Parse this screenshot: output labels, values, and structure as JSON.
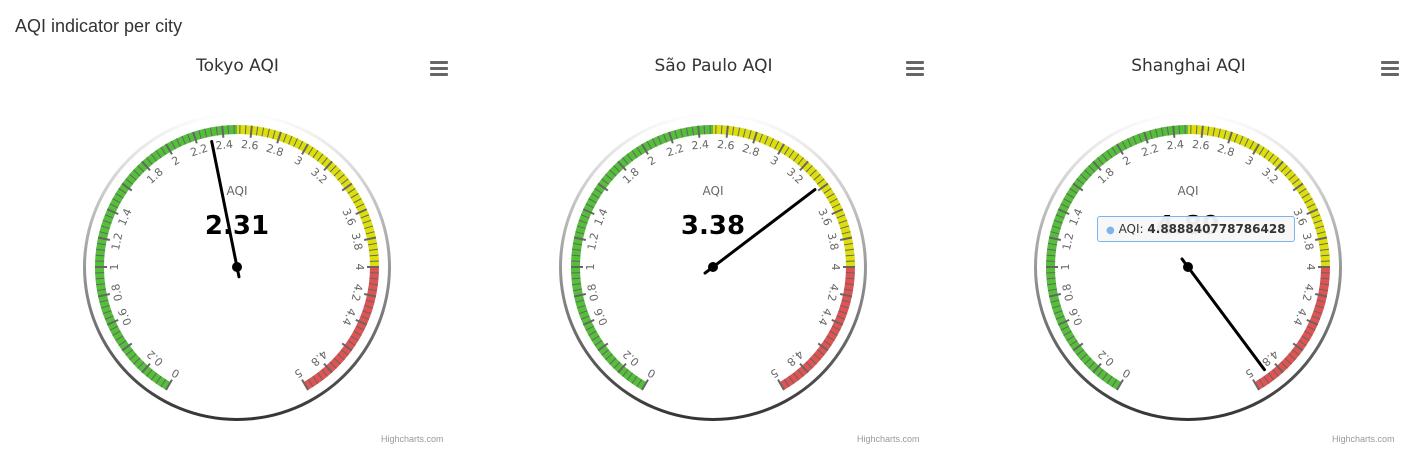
{
  "page": {
    "title": "AQI indicator per city"
  },
  "charts": [
    {
      "title": "Tokyo AQI",
      "series_name": "AQI",
      "value": 2.31,
      "value_label": "2.31",
      "credits": "Highcharts.com"
    },
    {
      "title": "São Paulo AQI",
      "series_name": "AQI",
      "value": 3.38,
      "value_label": "3.38",
      "credits": "Highcharts.com"
    },
    {
      "title": "Shanghai AQI",
      "series_name": "AQI",
      "value": 4.888840778786428,
      "value_label": "4.89",
      "credits": "Highcharts.com",
      "tooltip": {
        "series": "AQI",
        "value": "4.888840778786428"
      }
    }
  ],
  "chart_data": [
    {
      "type": "gauge",
      "title": "Tokyo AQI",
      "min": 0,
      "max": 5,
      "series": [
        {
          "name": "AQI",
          "values": [
            2.31
          ]
        }
      ],
      "bands": [
        {
          "from": 0,
          "to": 2.5,
          "color": "#55BF3B"
        },
        {
          "from": 2.5,
          "to": 4,
          "color": "#DDDF0D"
        },
        {
          "from": 4,
          "to": 5,
          "color": "#DF5353"
        }
      ],
      "tick_labels": [
        "0",
        "0.2",
        "0.6",
        "0.8",
        "1",
        "1.2",
        "1.4",
        "1.8",
        "2",
        "2.2",
        "2.4",
        "2.6",
        "2.8",
        "3",
        "3.2",
        "3.6",
        "3.8",
        "4",
        "4.2",
        "4.4",
        "4.8",
        "5"
      ]
    },
    {
      "type": "gauge",
      "title": "São Paulo AQI",
      "min": 0,
      "max": 5,
      "series": [
        {
          "name": "AQI",
          "values": [
            3.38
          ]
        }
      ],
      "bands": [
        {
          "from": 0,
          "to": 2.5,
          "color": "#55BF3B"
        },
        {
          "from": 2.5,
          "to": 4,
          "color": "#DDDF0D"
        },
        {
          "from": 4,
          "to": 5,
          "color": "#DF5353"
        }
      ],
      "tick_labels": [
        "0",
        "0.2",
        "0.6",
        "0.8",
        "1",
        "1.2",
        "1.4",
        "1.8",
        "2",
        "2.2",
        "2.4",
        "2.6",
        "2.8",
        "3",
        "3.2",
        "3.6",
        "3.8",
        "4",
        "4.2",
        "4.4",
        "4.8",
        "5"
      ]
    },
    {
      "type": "gauge",
      "title": "Shanghai AQI",
      "min": 0,
      "max": 5,
      "series": [
        {
          "name": "AQI",
          "values": [
            4.888840778786428
          ]
        }
      ],
      "bands": [
        {
          "from": 0,
          "to": 2.5,
          "color": "#55BF3B"
        },
        {
          "from": 2.5,
          "to": 4,
          "color": "#DDDF0D"
        },
        {
          "from": 4,
          "to": 5,
          "color": "#DF5353"
        }
      ],
      "tick_labels": [
        "0",
        "0.2",
        "0.6",
        "0.8",
        "1",
        "1.2",
        "1.4",
        "1.8",
        "2",
        "2.2",
        "2.4",
        "2.6",
        "2.8",
        "3",
        "3.2",
        "3.6",
        "3.8",
        "4",
        "4.2",
        "4.4",
        "4.8",
        "5"
      ]
    }
  ]
}
